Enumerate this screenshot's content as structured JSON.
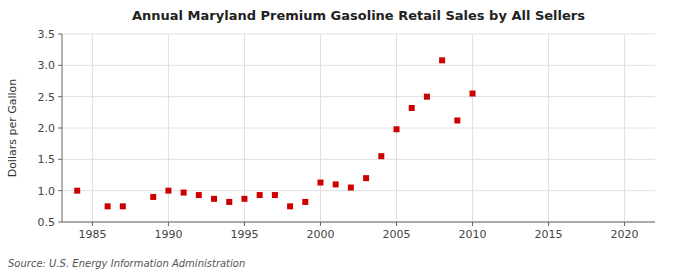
{
  "chart_data": {
    "type": "scatter",
    "title": "Annual Maryland Premium Gasoline Retail Sales by All Sellers",
    "ylabel": "Dollars per Gallon",
    "annotations": [
      "Source: U.S. Energy Information Administration"
    ],
    "color": "#cc0000",
    "marker": "square",
    "grid": true,
    "xlim": [
      1983,
      2022
    ],
    "ylim": [
      0.5,
      3.5
    ],
    "xticks": [
      1985,
      1990,
      1995,
      2000,
      2005,
      2010,
      2015,
      2020
    ],
    "yticks": [
      0.5,
      {
        "value": 1.0,
        "label": "1.0"
      },
      1.5,
      {
        "value": 2.0,
        "label": "2.0"
      },
      2.5,
      {
        "value": 3.0,
        "label": "3.0"
      },
      3.5
    ],
    "x": [
      1984,
      1986,
      1987,
      1989,
      1990,
      1991,
      1992,
      1993,
      1994,
      1995,
      1996,
      1997,
      1998,
      1999,
      2000,
      2001,
      2002,
      2003,
      2004,
      2005,
      2006,
      2007,
      2008,
      2009,
      2010
    ],
    "values": [
      1.0,
      0.75,
      0.75,
      0.9,
      1.0,
      0.97,
      0.93,
      0.87,
      0.82,
      0.87,
      0.93,
      0.93,
      0.75,
      0.82,
      1.13,
      1.1,
      1.05,
      1.2,
      1.55,
      1.98,
      2.32,
      2.5,
      3.08,
      2.12,
      2.55
    ]
  }
}
